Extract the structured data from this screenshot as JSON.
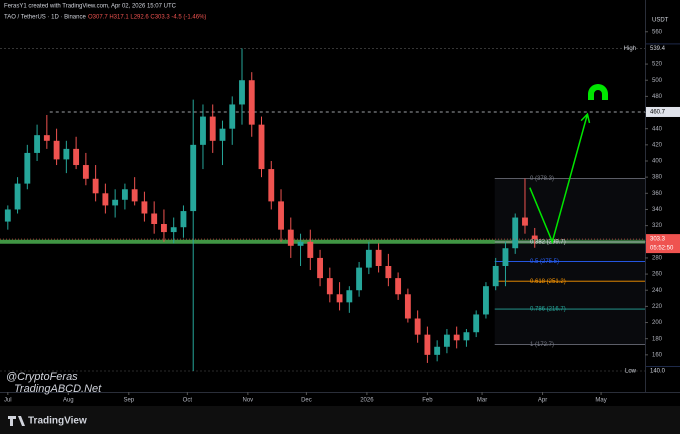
{
  "header": {
    "byline": "FerasY1 created with TradingView.com, Apr 02, 2026 15:07 UTC",
    "symbol": "TAO / TetherUS · 1D · Binance",
    "ohlc": "O307.7 H317.1 L292.6 C303.3 -4.5 (-1.46%)"
  },
  "watermark": [
    "@CryptoFeras",
    "TradingABCD.Net"
  ],
  "footer_brand": "TradingView",
  "chart_data": {
    "type": "candlestick",
    "currency": "USDT",
    "up_color": "#26a69a",
    "down_color": "#ef5350",
    "open": [
      325,
      340,
      372,
      410,
      432,
      425,
      402,
      415,
      395,
      378,
      360,
      345,
      352,
      365,
      350,
      335,
      322,
      312,
      318,
      338,
      420,
      455,
      425,
      440,
      470,
      500,
      445,
      390,
      350,
      315,
      295,
      300,
      280,
      255,
      235,
      225,
      240,
      268,
      290,
      270,
      255,
      235,
      205,
      185,
      160,
      170,
      185,
      178,
      188,
      210,
      245,
      270,
      292,
      330,
      307.7
    ],
    "high": [
      345,
      380,
      420,
      445,
      457,
      440,
      425,
      430,
      410,
      395,
      372,
      365,
      372,
      380,
      362,
      350,
      340,
      330,
      345,
      476,
      470,
      470,
      450,
      480,
      539.4,
      510,
      455,
      400,
      365,
      330,
      310,
      315,
      290,
      268,
      250,
      245,
      275,
      300,
      298,
      285,
      262,
      242,
      215,
      195,
      178,
      192,
      195,
      192,
      215,
      250,
      280,
      300,
      335,
      378.3,
      317.1
    ],
    "low": [
      315,
      335,
      365,
      400,
      415,
      395,
      385,
      390,
      370,
      350,
      335,
      330,
      340,
      345,
      325,
      310,
      300,
      298,
      305,
      140,
      390,
      410,
      395,
      420,
      445,
      430,
      380,
      340,
      300,
      280,
      270,
      265,
      245,
      225,
      215,
      212,
      232,
      260,
      262,
      245,
      228,
      200,
      175,
      150,
      152,
      162,
      168,
      170,
      182,
      205,
      240,
      245,
      285,
      310,
      292.6
    ],
    "close": [
      340,
      372,
      410,
      432,
      425,
      402,
      415,
      395,
      378,
      360,
      345,
      352,
      365,
      350,
      335,
      322,
      312,
      318,
      338,
      420,
      455,
      425,
      440,
      470,
      500,
      445,
      390,
      350,
      315,
      295,
      300,
      280,
      255,
      235,
      225,
      240,
      268,
      290,
      270,
      255,
      235,
      205,
      185,
      160,
      170,
      185,
      178,
      188,
      210,
      245,
      270,
      292,
      330,
      320,
      303.3
    ],
    "xlim": [
      -0.8,
      65.3
    ],
    "ylim": [
      114,
      582
    ],
    "xticks": [
      {
        "value": 0,
        "label": "Jul"
      },
      {
        "value": 6.2,
        "label": "Aug"
      },
      {
        "value": 12.4,
        "label": "Sep"
      },
      {
        "value": 18.4,
        "label": "Oct"
      },
      {
        "value": 24.6,
        "label": "Nov"
      },
      {
        "value": 30.6,
        "label": "Dec"
      },
      {
        "value": 36.8,
        "label": "2026"
      },
      {
        "value": 43,
        "label": "Feb"
      },
      {
        "value": 48.6,
        "label": "Mar"
      },
      {
        "value": 54.8,
        "label": "Apr"
      },
      {
        "value": 60.8,
        "label": "May"
      }
    ],
    "yticks": [
      160,
      180,
      200,
      220,
      240,
      260,
      280,
      300,
      320,
      340,
      360,
      380,
      400,
      420,
      440,
      460,
      480,
      500,
      520,
      560
    ],
    "high_level": {
      "label": "High",
      "value": 539.4
    },
    "low_level": {
      "label": "Low",
      "value": 140,
      "value_label": "140.0"
    },
    "target": {
      "value": 460.7,
      "x_start": 4.3
    },
    "support": {
      "value": 300,
      "color": "#4caf50"
    },
    "last": {
      "value": 303.3,
      "countdown": "05:52:50"
    },
    "fib": {
      "x_start": 49.9,
      "levels": [
        {
          "label": "0 (378.3)",
          "value": 378.3,
          "color": "#787b86"
        },
        {
          "label": "0.382 (299.7)",
          "value": 299.7,
          "color": "#d1d4dc"
        },
        {
          "label": "0.5 (275.5)",
          "value": 275.5,
          "color": "#2962ff"
        },
        {
          "label": "0.618 (251.2)",
          "value": 251.2,
          "color": "#ff9800"
        },
        {
          "label": "0.786 (216.7)",
          "value": 216.7,
          "color": "#26a69a"
        },
        {
          "label": "1 (172.7)",
          "value": 172.7,
          "color": "#787b86"
        }
      ]
    },
    "projection": {
      "color": "#00e600",
      "x": [
        53.5,
        55.8,
        59.4
      ],
      "y": [
        367,
        300,
        458
      ]
    }
  }
}
